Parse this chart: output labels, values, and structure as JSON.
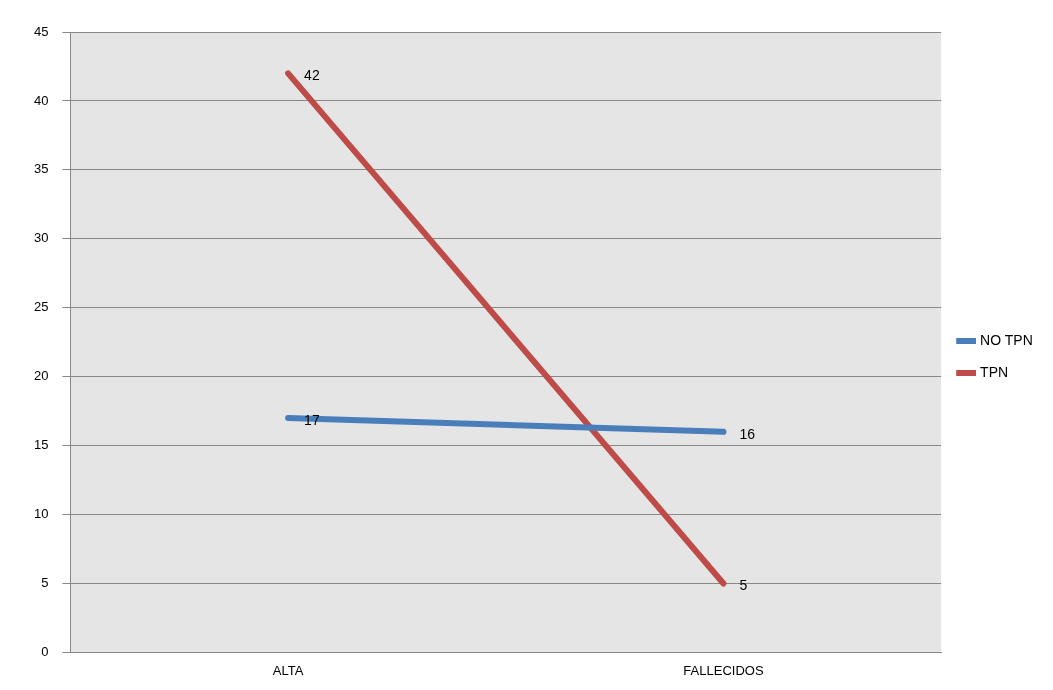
{
  "chart_data": {
    "type": "line",
    "categories": [
      "ALTA",
      "FALLECIDOS"
    ],
    "series": [
      {
        "name": "NO TPN",
        "color": "#4a7ebb",
        "values": [
          17,
          16
        ]
      },
      {
        "name": "TPN",
        "color": "#be4b48",
        "values": [
          42,
          5
        ]
      }
    ],
    "ylim": [
      0,
      45
    ],
    "yticks": [
      0,
      5,
      10,
      15,
      20,
      25,
      30,
      35,
      40,
      45
    ],
    "grid": "y",
    "legend": "right",
    "data_labels": true,
    "marker": "none",
    "line_style": "solid"
  }
}
